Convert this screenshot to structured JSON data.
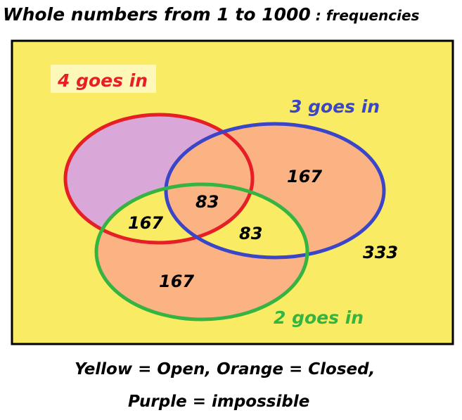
{
  "title": {
    "main": "Whole numbers from 1 to 1000",
    "sub": " : frequencies"
  },
  "sets": {
    "four": {
      "label": "4 goes in",
      "color": "#e61e26"
    },
    "three": {
      "label": "3 goes in",
      "color": "#3b45c8"
    },
    "two": {
      "label": "2 goes in",
      "color": "#35b442"
    }
  },
  "regions": {
    "three_only": "167",
    "two_and_four": "167",
    "all_three": "83",
    "two_and_three_only": "83",
    "two_only": "167",
    "outside": "333"
  },
  "colors": {
    "open": "#f9ec64",
    "closed": "#fbb384",
    "impossible": "#d9a8d8",
    "border": "#000000"
  },
  "caption": {
    "line1": "Yellow = Open, Orange = Closed,",
    "line2": "Purple = impossible"
  }
}
